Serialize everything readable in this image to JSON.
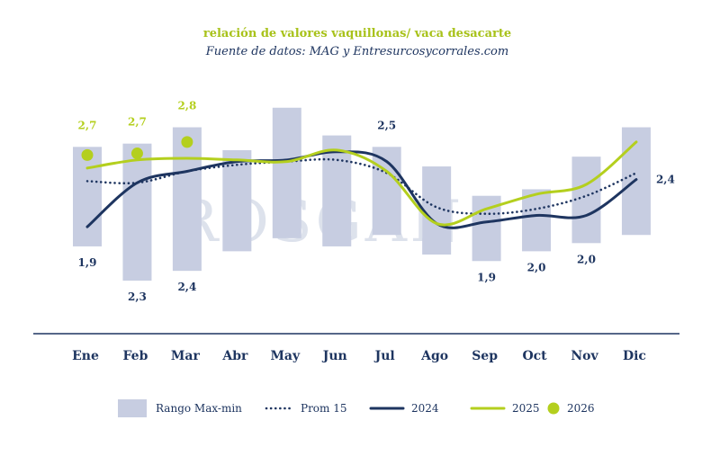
{
  "chart_data": {
    "type": "line",
    "title": "relación de valores vaquillonas/ vaca desacarte",
    "subtitle": "Fuente de datos: MAG y Entresurcosycorrales.com",
    "watermark": "ROSGAN",
    "categories": [
      "Ene",
      "Feb",
      "Mar",
      "Abr",
      "May",
      "Jun",
      "Jul",
      "Ago",
      "Sep",
      "Oct",
      "Nov",
      "Dic"
    ],
    "ylim": [
      1.55,
      3.0
    ],
    "range": {
      "name": "Rango Max-min",
      "max": [
        2.64,
        2.66,
        2.76,
        2.62,
        2.88,
        2.71,
        2.64,
        2.52,
        2.34,
        2.38,
        2.58,
        2.76
      ],
      "min": [
        2.03,
        1.82,
        1.88,
        2.0,
        2.08,
        2.03,
        2.1,
        1.98,
        1.94,
        2.0,
        2.05,
        2.1
      ]
    },
    "series": [
      {
        "name": "Prom 15",
        "style": "dotted",
        "color": "#1e3560",
        "values": [
          2.43,
          2.42,
          2.49,
          2.53,
          2.55,
          2.56,
          2.48,
          2.27,
          2.23,
          2.26,
          2.34,
          2.48
        ]
      },
      {
        "name": "2024",
        "style": "solid",
        "color": "#1e3560",
        "values": [
          2.15,
          2.42,
          2.49,
          2.55,
          2.56,
          2.61,
          2.55,
          2.17,
          2.18,
          2.22,
          2.22,
          2.44
        ]
      },
      {
        "name": "2025",
        "style": "solid",
        "color": "#b4cf1e",
        "values": [
          2.51,
          2.56,
          2.57,
          2.56,
          2.55,
          2.62,
          2.49,
          2.17,
          2.26,
          2.35,
          2.41,
          2.67
        ]
      },
      {
        "name": "2026",
        "style": "dots",
        "color": "#b4cf1e",
        "values": [
          2.59,
          2.6,
          2.67,
          null,
          null,
          null,
          null,
          null,
          null,
          null,
          null,
          null
        ]
      }
    ],
    "data_labels": [
      {
        "month": "Ene",
        "text": "2,7",
        "color": "#b4cf1e",
        "anchor": "above"
      },
      {
        "month": "Feb",
        "text": "2,7",
        "color": "#b4cf1e",
        "anchor": "above"
      },
      {
        "month": "Mar",
        "text": "2,8",
        "color": "#b4cf1e",
        "anchor": "above"
      },
      {
        "month": "Ene",
        "text": "1,9",
        "color": "#1e3560",
        "anchor": "below"
      },
      {
        "month": "Feb",
        "text": "2,3",
        "color": "#1e3560",
        "anchor": "below"
      },
      {
        "month": "Mar",
        "text": "2,4",
        "color": "#1e3560",
        "anchor": "below"
      },
      {
        "month": "Jul",
        "text": "2,5",
        "color": "#1e3560",
        "anchor": "above"
      },
      {
        "month": "Sep",
        "text": "1,9",
        "color": "#1e3560",
        "anchor": "below"
      },
      {
        "month": "Oct",
        "text": "2,0",
        "color": "#1e3560",
        "anchor": "below"
      },
      {
        "month": "Nov",
        "text": "2,0",
        "color": "#1e3560",
        "anchor": "below"
      },
      {
        "month": "Dic",
        "text": "2,4",
        "color": "#1e3560",
        "anchor": "right"
      }
    ],
    "legend": {
      "position": "bottom",
      "items": [
        {
          "label": "Rango Max-min",
          "kind": "bar",
          "color": "#c7cde1"
        },
        {
          "label": "Prom 15",
          "kind": "dotted",
          "color": "#1e3560"
        },
        {
          "label": "2024",
          "kind": "line",
          "color": "#1e3560"
        },
        {
          "label": "2025",
          "kind": "line",
          "color": "#b4cf1e"
        },
        {
          "label": "2026",
          "kind": "dot",
          "color": "#b4cf1e"
        }
      ]
    },
    "colors": {
      "bar": "#c7cde1",
      "navy": "#1e3560",
      "green": "#b4cf1e",
      "axis": "#1e3560"
    }
  }
}
